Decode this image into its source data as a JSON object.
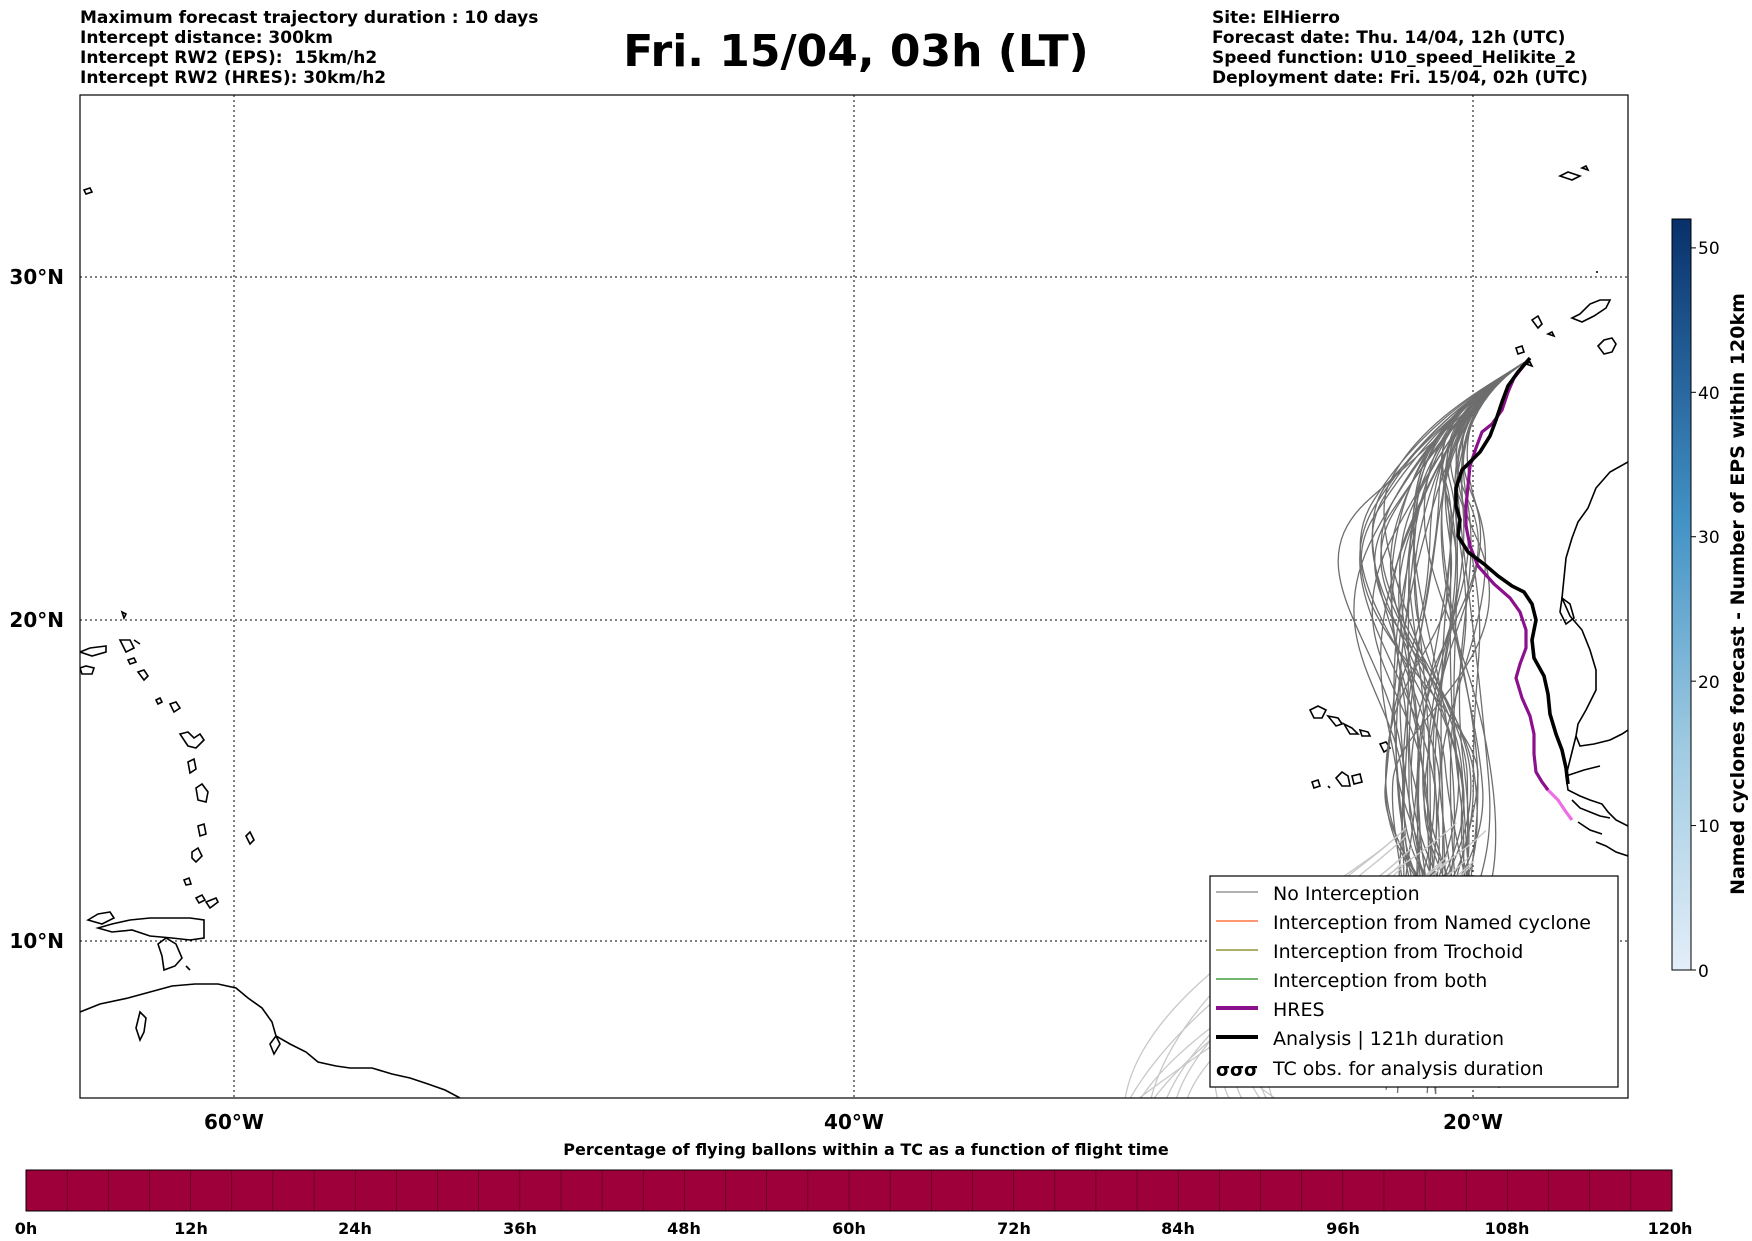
{
  "header": {
    "left_lines": [
      "Maximum forecast trajectory duration : 10 days",
      "Intercept distance: 300km",
      "Intercept RW2 (EPS):  15km/h2",
      "Intercept RW2 (HRES): 30km/h2"
    ],
    "title": "Fri. 15/04, 03h (LT)",
    "right_lines": [
      "Site: ElHierro",
      "Forecast date: Thu. 14/04, 12h (UTC)",
      "Speed function: U10_speed_Helikite_2",
      "Deployment date: Fri. 15/04, 02h (UTC)"
    ]
  },
  "map": {
    "lat_labels": [
      "30°N",
      "20°N",
      "10°N"
    ],
    "lon_labels": [
      "60°W",
      "40°W",
      "20°W"
    ],
    "grid": "dotted",
    "legend": {
      "placement": "lower-right",
      "entries": [
        {
          "label": "No Interception",
          "color": "#808080",
          "style": "thin"
        },
        {
          "label": "Interception from Named cyclone",
          "color": "#ff5a1e",
          "style": "thin"
        },
        {
          "label": "Interception from Trochoid",
          "color": "#7f7f16",
          "style": "thin"
        },
        {
          "label": "Interception from both",
          "color": "#1e8a1e",
          "style": "thin"
        },
        {
          "label": "HRES",
          "color": "#8b108b",
          "style": "thick"
        },
        {
          "label": "Analysis | 121h duration",
          "color": "#000000",
          "style": "thick"
        },
        {
          "label": "TC obs. for analysis duration",
          "color": "#000000",
          "style": "symbol",
          "symbol": "σσσ"
        }
      ]
    },
    "colors": {
      "eps_trajectory": "#6e6e6e",
      "eps_trajectory_late": "#c8c8c8",
      "hres": "#8b108b",
      "hres_late": "#ee6ee6",
      "analysis": "#000000",
      "coastline": "#000000"
    }
  },
  "colorbar_right": {
    "label": "Named cyclones forecast - Number of EPS within 120km",
    "ticks": [
      "0",
      "10",
      "20",
      "30",
      "40",
      "50"
    ],
    "max": 52,
    "color_low": "#e3eef9",
    "color_high": "#08306b"
  },
  "colorbar_bottom": {
    "title": "Percentage of flying ballons within a TC as a function of flight time",
    "ticks": [
      "0h",
      "12h",
      "24h",
      "36h",
      "48h",
      "60h",
      "72h",
      "84h",
      "96h",
      "108h",
      "120h"
    ],
    "color": "#9e003a",
    "segments": 40
  }
}
